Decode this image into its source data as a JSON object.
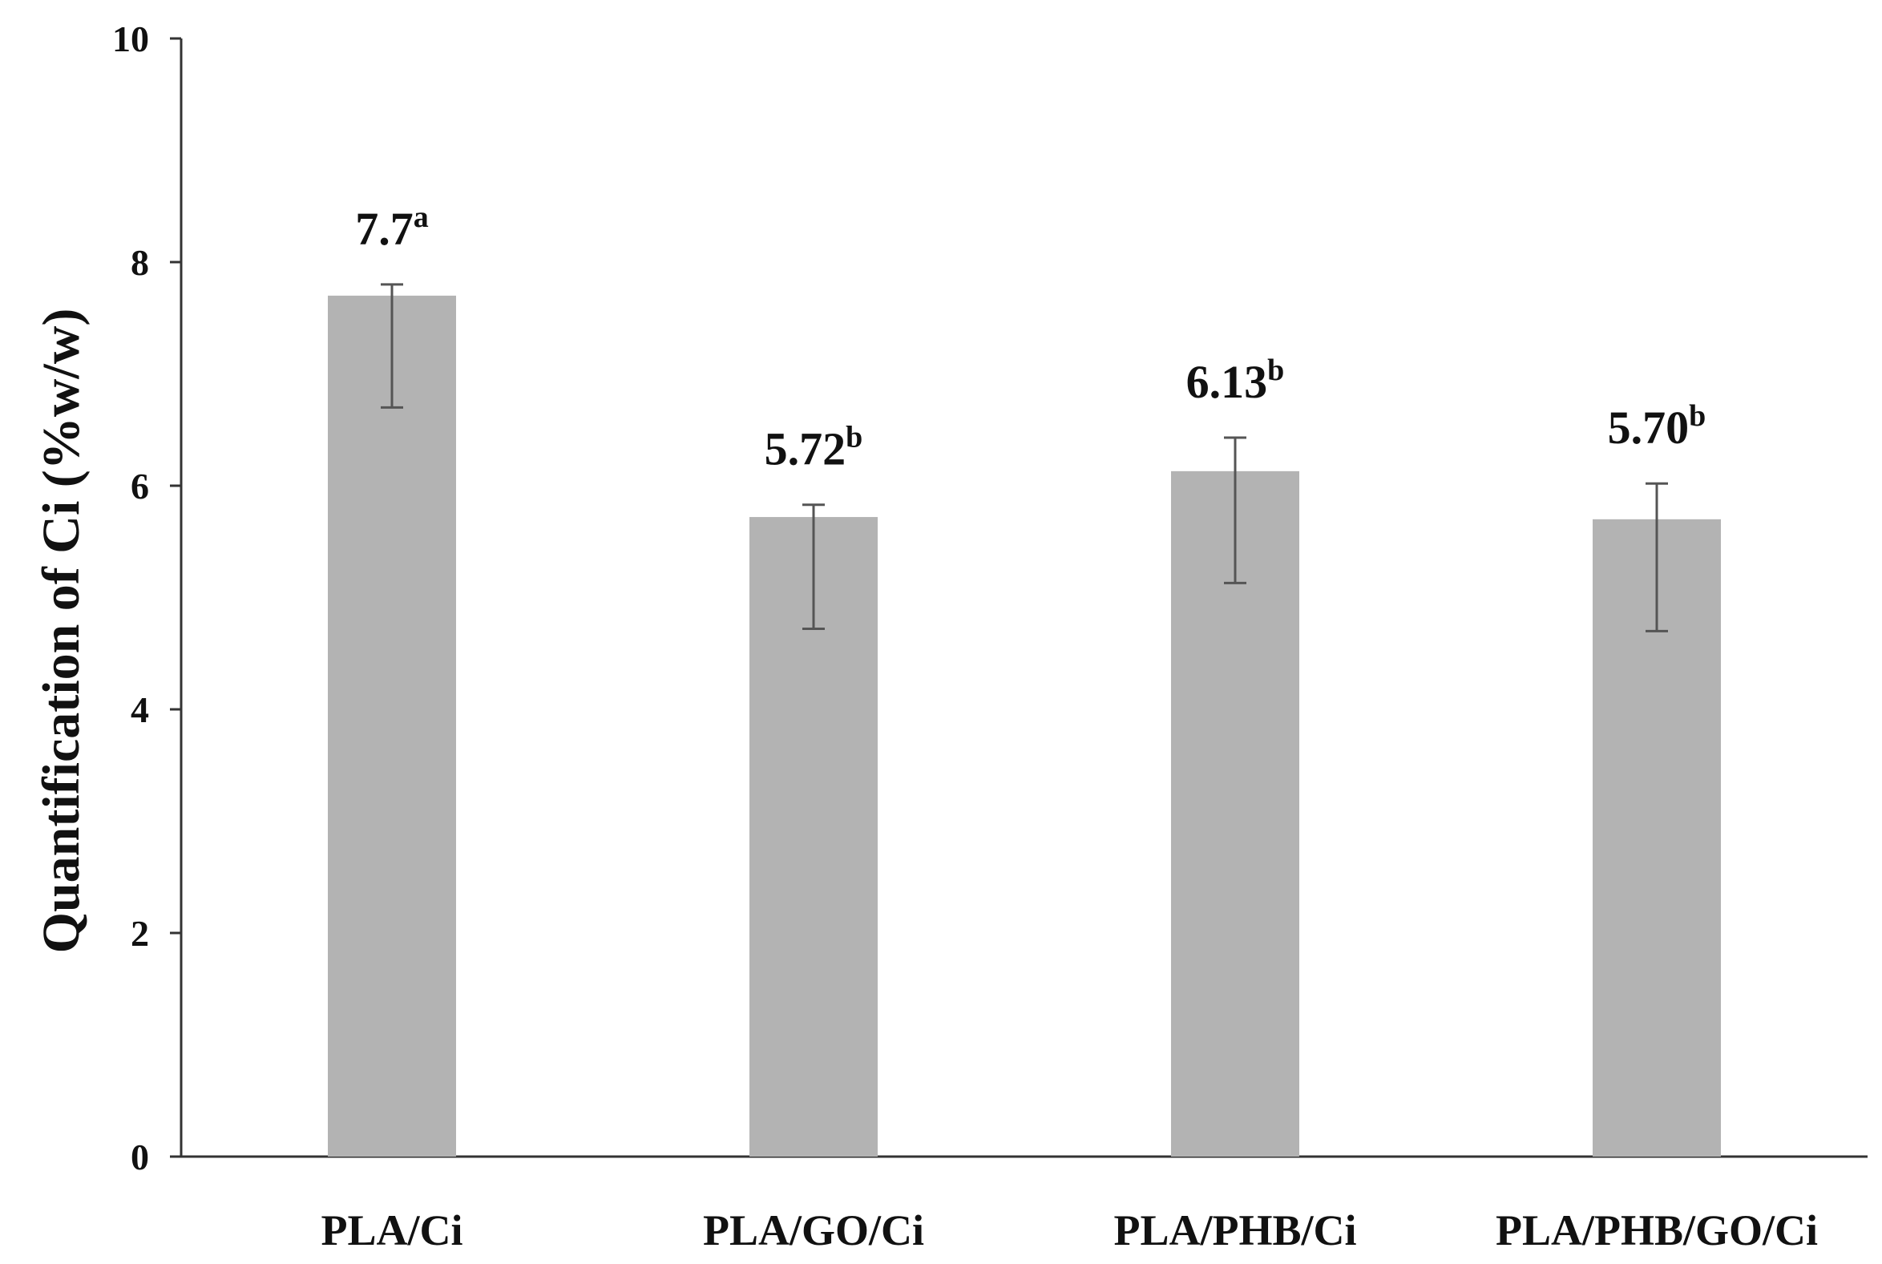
{
  "chart_data": {
    "type": "bar",
    "title": "",
    "xlabel": "",
    "ylabel": "Quantification of Ci  (%w/w)",
    "ylim": [
      0,
      10
    ],
    "yticks": [
      0,
      2,
      4,
      6,
      8,
      10
    ],
    "grid": false,
    "legend": "none",
    "categories": [
      "PLA/Ci",
      "PLA/GO/Ci",
      "PLA/PHB/Ci",
      "PLA/PHB/GO/Ci"
    ],
    "values": [
      7.7,
      5.72,
      6.13,
      5.7
    ],
    "error_low": [
      6.7,
      4.72,
      5.13,
      4.7
    ],
    "error_high": [
      7.8,
      5.83,
      6.43,
      6.02
    ],
    "data_labels": [
      {
        "value": "7.7",
        "letter": "a"
      },
      {
        "value": "5.72",
        "letter": "b"
      },
      {
        "value": "6.13",
        "letter": "b"
      },
      {
        "value": "5.70",
        "letter": "b"
      }
    ],
    "colors": {
      "bar": "#b3b3b3",
      "error_bar": "#555555",
      "axis": "#333333"
    }
  }
}
